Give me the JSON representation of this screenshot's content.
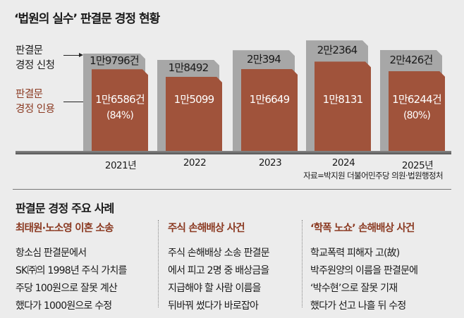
{
  "title": "‘법원의 실수’ 판결문 경정 현황",
  "legend": {
    "requested": [
      "판결문",
      "경정 신청"
    ],
    "accepted": [
      "판결문",
      "경정 인용"
    ]
  },
  "colors": {
    "requested": "#a7a7a7",
    "accepted": "#a0533b",
    "case_title": "#8b3a22",
    "background": "#ececec"
  },
  "chart_data": {
    "type": "bar",
    "title": "‘법원의 실수’ 판결문 경정 현황",
    "categories": [
      "2021년",
      "2022",
      "2023",
      "2024",
      "2025년"
    ],
    "series": [
      {
        "name": "판결문 경정 신청",
        "values": [
          19796,
          18492,
          20394,
          22364,
          20426
        ],
        "labels": [
          "1만9796건",
          "1만8492",
          "2만394",
          "2만2364",
          "2만426건"
        ]
      },
      {
        "name": "판결문 경정 인용",
        "values": [
          16586,
          15099,
          16649,
          18131,
          16244
        ],
        "labels": [
          "1만6586건",
          "1만5099",
          "1만6649",
          "1만8131",
          "1만6244건"
        ],
        "sublabels": [
          "(84%)",
          "",
          "",
          "",
          "(80%)"
        ]
      }
    ],
    "ylim": [
      0,
      28000
    ],
    "grid": false
  },
  "source": "자료=박지원 더불어민주당 의원·법원행정처",
  "cases_section": {
    "title": "판결문 경정 주요 사례",
    "cases": [
      {
        "title": "최태원·노소영 이혼 소송",
        "lines": [
          "항소심 판결문에서",
          "SK㈜의 1998년 주식 가치를",
          "주당 100원으로 잘못 계산",
          "했다가 1000원으로 수정"
        ]
      },
      {
        "title": "주식 손해배상 사건",
        "lines": [
          "주식 손해배상 소송 판결문",
          "에서 피고 2명 중 배상금을",
          "지급해야 할 사람 이름을",
          "뒤바꿔 썼다가 바로잡아"
        ]
      },
      {
        "title": "‘학폭 노쇼’ 손해배상 사건",
        "lines": [
          "학교폭력 피해자 고(故)",
          "박주원양의 이름을 판결문에",
          "‘박수현’으로 잘못 기재",
          "했다가 선고 나흘 뒤 수정"
        ]
      }
    ]
  }
}
